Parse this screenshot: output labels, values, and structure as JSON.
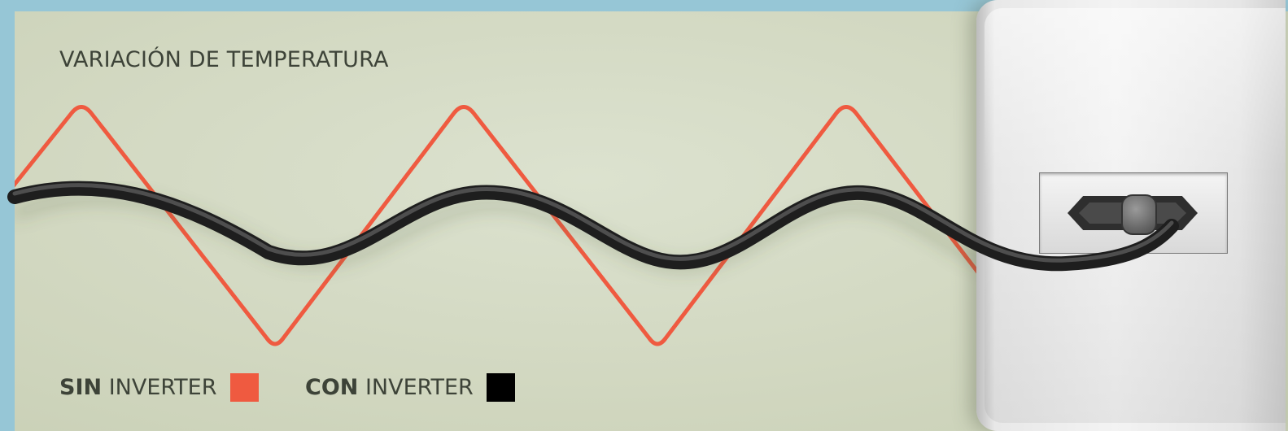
{
  "title": "VARIACIÓN DE TEMPERATURA",
  "legend": [
    {
      "bold": "SIN",
      "text": "INVERTER",
      "color": "#ef5a40"
    },
    {
      "bold": "CON",
      "text": "INVERTER",
      "color": "#000000"
    }
  ],
  "series_colors": {
    "sin_inverter": "#ef5a40",
    "con_inverter": "#2b2b2b"
  },
  "icons": [
    "wall-outlet-icon",
    "plug-icon",
    "power-cable-icon"
  ]
}
